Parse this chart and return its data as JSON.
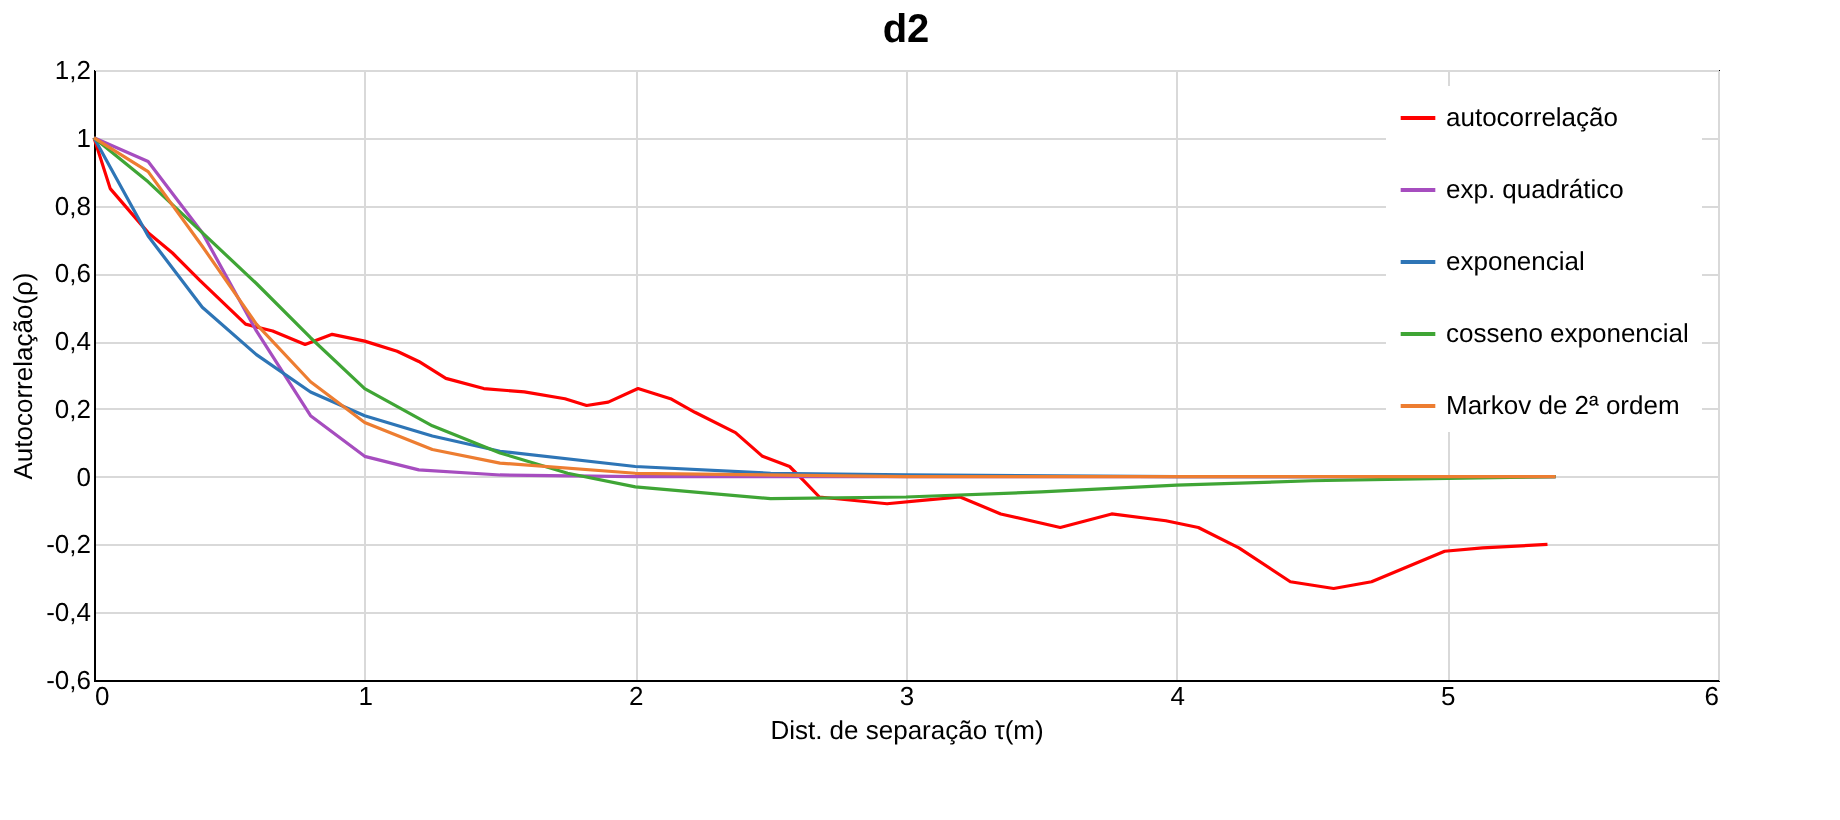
{
  "chart_data": {
    "type": "line",
    "title": "d2",
    "xlabel": "Dist. de separação τ(m)",
    "ylabel": "Autocorrelação(ρ)",
    "xlim": [
      0,
      6
    ],
    "xticks": [
      0,
      1,
      2,
      3,
      4,
      5,
      6
    ],
    "ylim": [
      -0.6,
      1.2
    ],
    "yticks": [
      {
        "value": -0.6,
        "label": "-0,6"
      },
      {
        "value": -0.4,
        "label": "-0,4"
      },
      {
        "value": -0.2,
        "label": "-0,2"
      },
      0,
      {
        "value": 0.2,
        "label": "0,2"
      },
      {
        "value": 0.4,
        "label": "0,4"
      },
      {
        "value": 0.6,
        "label": "0,6"
      },
      {
        "value": 0.8,
        "label": "0,8"
      },
      1,
      {
        "value": 1.2,
        "label": "1,2"
      }
    ],
    "grid": true,
    "legend": "top right",
    "marker": "none",
    "line_style": "solid",
    "series": [
      {
        "name": "autocorrelação",
        "color": "#ff0000",
        "x": [
          0,
          0.06,
          0.2,
          0.29,
          0.39,
          0.56,
          0.66,
          0.78,
          0.88,
          1.0,
          1.12,
          1.2,
          1.3,
          1.44,
          1.59,
          1.74,
          1.82,
          1.9,
          2.01,
          2.13,
          2.22,
          2.37,
          2.47,
          2.57,
          2.62,
          2.68,
          2.93,
          3.06,
          3.2,
          3.35,
          3.57,
          3.76,
          3.96,
          4.08,
          4.23,
          4.42,
          4.58,
          4.72,
          4.99,
          5.13,
          5.37
        ],
        "values": [
          1.0,
          0.85,
          0.72,
          0.66,
          0.58,
          0.45,
          0.43,
          0.39,
          0.42,
          0.4,
          0.37,
          0.34,
          0.29,
          0.26,
          0.25,
          0.23,
          0.21,
          0.22,
          0.26,
          0.23,
          0.19,
          0.13,
          0.06,
          0.03,
          -0.01,
          -0.06,
          -0.08,
          -0.07,
          -0.06,
          -0.11,
          -0.15,
          -0.11,
          -0.13,
          -0.15,
          -0.21,
          -0.31,
          -0.33,
          -0.31,
          -0.22,
          -0.21,
          -0.2
        ]
      },
      {
        "name": "exp. quadrático",
        "color": "#a64dbf",
        "x": [
          0,
          0.2,
          0.4,
          0.6,
          0.8,
          1.0,
          1.2,
          1.5,
          2,
          3,
          4,
          5.4
        ],
        "values": [
          1,
          0.93,
          0.72,
          0.43,
          0.18,
          0.06,
          0.02,
          0.005,
          0,
          0,
          0,
          0
        ]
      },
      {
        "name": "exponencial",
        "color": "#2e75b6",
        "x": [
          0,
          0.2,
          0.4,
          0.6,
          0.8,
          1.0,
          1.25,
          1.5,
          2,
          2.5,
          3,
          4,
          5.4
        ],
        "values": [
          1,
          0.71,
          0.5,
          0.36,
          0.25,
          0.18,
          0.12,
          0.075,
          0.03,
          0.01,
          0.005,
          0,
          0
        ]
      },
      {
        "name": "cosseno exponencial",
        "color": "#3fa535",
        "x": [
          0,
          0.2,
          0.4,
          0.6,
          0.8,
          1.0,
          1.25,
          1.5,
          1.75,
          2,
          2.5,
          3,
          3.5,
          4,
          4.5,
          5,
          5.4
        ],
        "values": [
          1,
          0.87,
          0.72,
          0.57,
          0.41,
          0.26,
          0.15,
          0.07,
          0.01,
          -0.03,
          -0.065,
          -0.06,
          -0.045,
          -0.025,
          -0.012,
          -0.005,
          0
        ]
      },
      {
        "name": "Markov de 2ª ordem",
        "color": "#ed7d31",
        "x": [
          0,
          0.2,
          0.4,
          0.6,
          0.8,
          1.0,
          1.25,
          1.5,
          2,
          3,
          4,
          5.4
        ],
        "values": [
          1,
          0.9,
          0.68,
          0.45,
          0.28,
          0.16,
          0.08,
          0.04,
          0.01,
          0,
          0,
          0
        ]
      }
    ]
  }
}
